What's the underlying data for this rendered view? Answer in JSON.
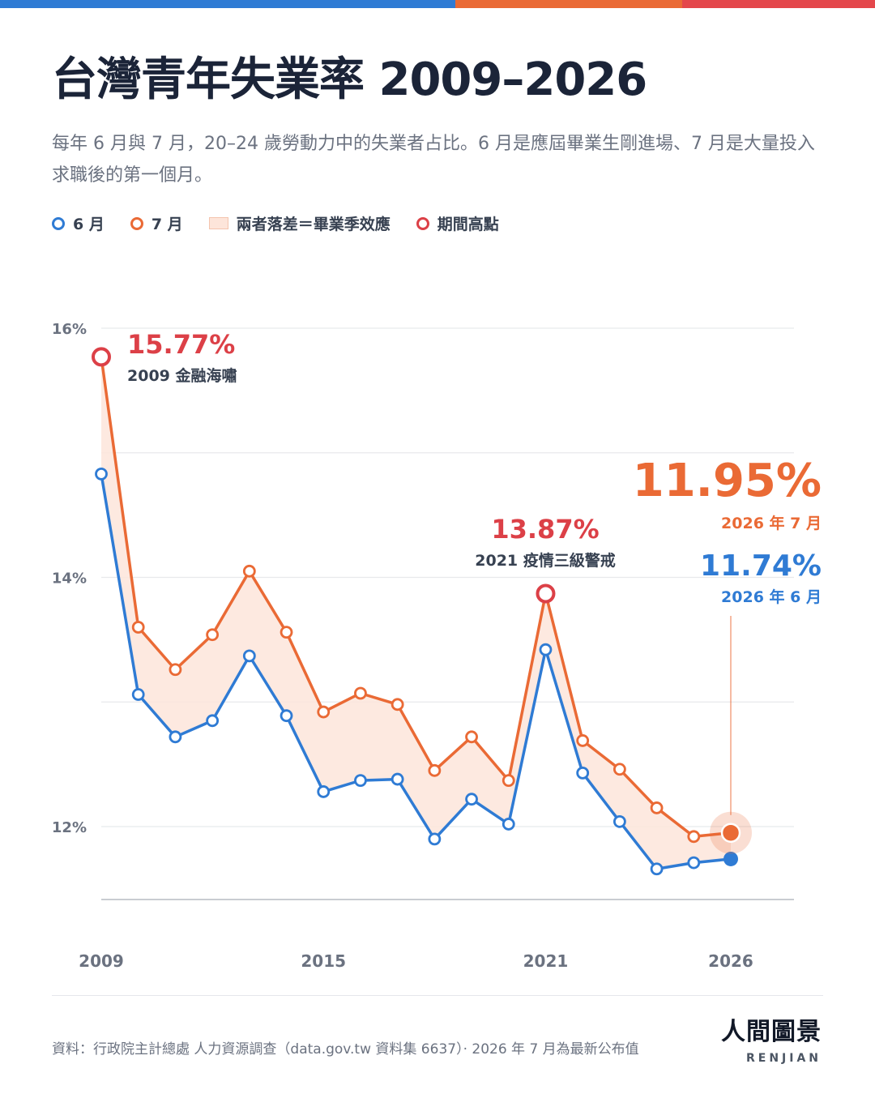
{
  "colors": {
    "june": "#2f7bd4",
    "july": "#ea6a35",
    "peak": "#dc4047",
    "band": "#fde5da",
    "topbar": [
      "#2f7bd4",
      "#ea6a35",
      "#e4474b"
    ]
  },
  "header": {
    "title": "台灣青年失業率 2009–2026",
    "subtitle": "每年 6 月與 7 月，20–24 歲勞動力中的失業者占比。6 月是應屆畢業生剛進場、7 月是大量投入求職後的第一個月。"
  },
  "legend": {
    "june": "6 月",
    "july": "7 月",
    "band": "兩者落差＝畢業季效應",
    "peak": "期間高點"
  },
  "chart_data": {
    "type": "line",
    "x": [
      2009,
      2010,
      2011,
      2012,
      2013,
      2014,
      2015,
      2016,
      2017,
      2018,
      2019,
      2020,
      2021,
      2022,
      2023,
      2024,
      2025,
      2026
    ],
    "series": [
      {
        "name": "6 月",
        "values": [
          14.83,
          13.06,
          12.72,
          12.85,
          13.37,
          12.89,
          12.28,
          12.37,
          12.38,
          11.9,
          12.22,
          12.02,
          13.42,
          12.43,
          12.04,
          11.66,
          11.71,
          11.74
        ]
      },
      {
        "name": "7 月",
        "values": [
          15.77,
          13.6,
          13.26,
          13.54,
          14.05,
          13.56,
          12.92,
          13.07,
          12.98,
          12.45,
          12.72,
          12.37,
          13.87,
          12.69,
          12.46,
          12.15,
          11.92,
          11.95
        ]
      }
    ],
    "ylim": [
      11.4,
      16.0
    ],
    "yticks": [
      12,
      14,
      16
    ],
    "ytick_labels": [
      "12%",
      "14%",
      "16%"
    ],
    "xticks": [
      2009,
      2015,
      2021,
      2026
    ],
    "xtick_labels": [
      "2009",
      "2015",
      "2021",
      "2026"
    ],
    "grid": true,
    "annotations": {
      "peak_2009": {
        "value": "15.77%",
        "label": "2009 金融海嘯"
      },
      "peak_2021": {
        "value": "13.87%",
        "label": "2021 疫情三級警戒"
      },
      "latest_july": {
        "value": "11.95%",
        "label": "2026 年 7 月"
      },
      "latest_june": {
        "value": "11.74%",
        "label": "2026 年 6 月"
      }
    }
  },
  "footer": {
    "source": "資料：行政院主計總處 人力資源調查（data.gov.tw 資料集 6637）· 2026 年 7 月為最新公布值",
    "brand_name": "人間圖景",
    "brand_en": "RENJIAN"
  }
}
